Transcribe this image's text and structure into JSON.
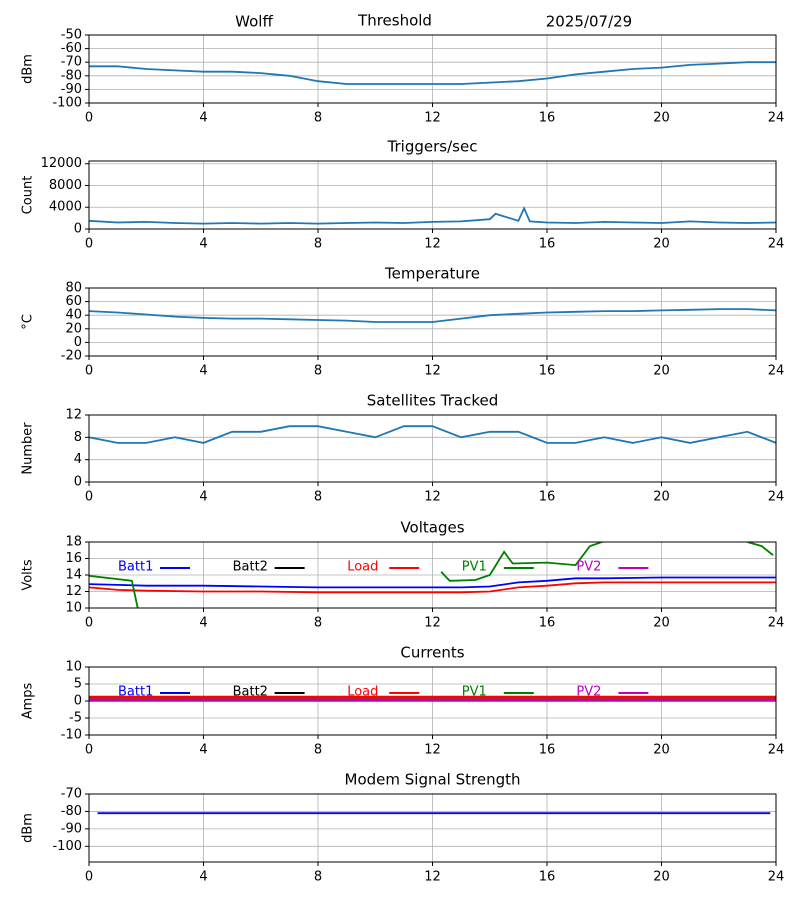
{
  "header": {
    "station": "Wolff",
    "date": "2025/07/29"
  },
  "chart_data": [
    {
      "type": "line",
      "title": "Threshold",
      "ylabel": "dBm",
      "xlim": [
        0,
        24
      ],
      "xticks": [
        0,
        4,
        8,
        12,
        16,
        20,
        24
      ],
      "ylim": [
        -100,
        -50
      ],
      "yticks": [
        -100,
        -90,
        -80,
        -70,
        -60,
        -50
      ],
      "grid": true,
      "x": [
        0,
        1,
        2,
        3,
        4,
        5,
        6,
        7,
        8,
        9,
        10,
        11,
        12,
        13,
        14,
        15,
        16,
        17,
        18,
        19,
        20,
        21,
        22,
        23,
        24
      ],
      "series": [
        {
          "name": "Threshold",
          "color": "#1f77b4",
          "values": [
            -73,
            -73,
            -75,
            -76,
            -77,
            -77,
            -78,
            -80,
            -84,
            -86,
            -86,
            -86,
            -86,
            -86,
            -85,
            -84,
            -82,
            -79,
            -77,
            -75,
            -74,
            -72,
            -71,
            -70,
            -70
          ]
        }
      ]
    },
    {
      "type": "line",
      "title": "Triggers/sec",
      "ylabel": "Count",
      "xlim": [
        0,
        24
      ],
      "xticks": [
        0,
        4,
        8,
        12,
        16,
        20,
        24
      ],
      "ylim": [
        0,
        12500
      ],
      "yticks": [
        0,
        4000,
        8000,
        12000
      ],
      "grid": true,
      "x": [
        0,
        1,
        2,
        3,
        4,
        5,
        6,
        7,
        8,
        9,
        10,
        11,
        12,
        13,
        14,
        14.2,
        15,
        15.2,
        15.4,
        16,
        17,
        18,
        19,
        20,
        21,
        22,
        23,
        24
      ],
      "series": [
        {
          "name": "Triggers",
          "color": "#1f77b4",
          "values": [
            1500,
            1200,
            1300,
            1100,
            1000,
            1100,
            1000,
            1100,
            1000,
            1100,
            1200,
            1100,
            1300,
            1400,
            1800,
            2800,
            1500,
            3800,
            1400,
            1200,
            1100,
            1300,
            1200,
            1100,
            1400,
            1200,
            1100,
            1200
          ]
        }
      ]
    },
    {
      "type": "line",
      "title": "Temperature",
      "ylabel": "°C",
      "xlim": [
        0,
        24
      ],
      "xticks": [
        0,
        4,
        8,
        12,
        16,
        20,
        24
      ],
      "ylim": [
        -20,
        80
      ],
      "yticks": [
        -20,
        0,
        20,
        40,
        60,
        80
      ],
      "grid": true,
      "x": [
        0,
        1,
        2,
        3,
        4,
        5,
        6,
        7,
        8,
        9,
        10,
        11,
        12,
        13,
        14,
        15,
        16,
        17,
        18,
        19,
        20,
        21,
        22,
        23,
        24
      ],
      "series": [
        {
          "name": "Temperature",
          "color": "#1f77b4",
          "values": [
            46,
            44,
            41,
            38,
            36,
            35,
            35,
            34,
            33,
            32,
            30,
            30,
            30,
            35,
            40,
            42,
            44,
            45,
            46,
            46,
            47,
            48,
            49,
            49,
            47
          ]
        }
      ]
    },
    {
      "type": "line",
      "title": "Satellites Tracked",
      "ylabel": "Number",
      "xlim": [
        0,
        24
      ],
      "xticks": [
        0,
        4,
        8,
        12,
        16,
        20,
        24
      ],
      "ylim": [
        0,
        12
      ],
      "yticks": [
        0,
        4,
        8,
        12
      ],
      "grid": true,
      "x": [
        0,
        1,
        2,
        3,
        4,
        5,
        6,
        7,
        8,
        9,
        10,
        11,
        12,
        13,
        14,
        15,
        16,
        17,
        18,
        19,
        20,
        21,
        22,
        23,
        24
      ],
      "series": [
        {
          "name": "Satellites",
          "color": "#1f77b4",
          "values": [
            8,
            7,
            7,
            8,
            7,
            9,
            9,
            10,
            10,
            9,
            8,
            10,
            10,
            8,
            9,
            9,
            7,
            7,
            8,
            7,
            8,
            7,
            8,
            9,
            7
          ]
        }
      ]
    },
    {
      "type": "line",
      "title": "Voltages",
      "ylabel": "Volts",
      "xlim": [
        0,
        24
      ],
      "xticks": [
        0,
        4,
        8,
        12,
        16,
        20,
        24
      ],
      "ylim": [
        10,
        18
      ],
      "yticks": [
        10,
        12,
        14,
        16,
        18
      ],
      "grid": true,
      "legend": "top",
      "x": [
        0,
        1,
        2,
        4,
        6,
        8,
        10,
        12,
        13,
        14,
        15,
        16,
        17,
        18,
        20,
        22,
        24
      ],
      "series": [
        {
          "name": "Batt1",
          "color": "#0000ff",
          "values": [
            12.9,
            12.8,
            12.7,
            12.7,
            12.6,
            12.5,
            12.5,
            12.5,
            12.5,
            12.6,
            13.1,
            13.3,
            13.6,
            13.6,
            13.7,
            13.7,
            13.7
          ]
        },
        {
          "name": "Batt2",
          "color": "#000000",
          "values": [
            null,
            null,
            null,
            null,
            null,
            null,
            null,
            null,
            null,
            null,
            null,
            null,
            null,
            null,
            null,
            null,
            null
          ]
        },
        {
          "name": "Load",
          "color": "#ff0000",
          "values": [
            12.5,
            12.2,
            12.1,
            12.0,
            12.0,
            11.9,
            11.9,
            11.9,
            11.9,
            12.0,
            12.5,
            12.7,
            13.0,
            13.1,
            13.1,
            13.1,
            13.1
          ]
        },
        {
          "name": "PV1",
          "color": "#008000",
          "x": [
            0,
            1,
            1.5,
            1.7,
            12,
            12.3,
            12.6,
            13.5,
            14,
            14.5,
            14.8,
            16,
            17,
            17.5,
            18,
            18.5,
            23,
            23.5,
            23.9
          ],
          "values": [
            13.9,
            13.5,
            13.3,
            10,
            null,
            14.4,
            13.3,
            13.4,
            14,
            16.8,
            15.4,
            15.5,
            15.2,
            17.5,
            18.1,
            null,
            18,
            17.5,
            16.4
          ]
        },
        {
          "name": "PV2",
          "color": "#bf00bf",
          "values": [
            null,
            null,
            null,
            null,
            null,
            null,
            null,
            null,
            null,
            null,
            null,
            null,
            null,
            null,
            null,
            null,
            null
          ]
        }
      ]
    },
    {
      "type": "line",
      "title": "Currents",
      "ylabel": "Amps",
      "xlim": [
        0,
        24
      ],
      "xticks": [
        0,
        4,
        8,
        12,
        16,
        20,
        24
      ],
      "ylim": [
        -10,
        10
      ],
      "yticks": [
        -10,
        -5,
        0,
        5,
        10
      ],
      "grid": true,
      "legend": "top",
      "x": [
        0,
        24
      ],
      "series": [
        {
          "name": "Batt1",
          "color": "#0000ff",
          "values": [
            0.6,
            0.6
          ]
        },
        {
          "name": "Batt2",
          "color": "#000000",
          "values": [
            0.8,
            0.8
          ]
        },
        {
          "name": "Load",
          "color": "#ff0000",
          "values": [
            1.1,
            1.1
          ]
        },
        {
          "name": "PV1",
          "color": "#008000",
          "values": [
            0.3,
            0.3
          ]
        },
        {
          "name": "PV2",
          "color": "#bf00bf",
          "values": [
            0.2,
            0.2
          ]
        }
      ]
    },
    {
      "type": "line",
      "title": "Modem Signal Strength",
      "ylabel": "dBm",
      "xlim": [
        0,
        24
      ],
      "xticks": [
        0,
        4,
        8,
        12,
        16,
        20,
        24
      ],
      "ylim": [
        -109,
        -70
      ],
      "yticks": [
        -100,
        -90,
        -80,
        -70
      ],
      "grid": true,
      "x": [
        0.3,
        12,
        23.8
      ],
      "series": [
        {
          "name": "Modem",
          "color": "#0000ff",
          "values": [
            -81,
            -81,
            -81
          ]
        }
      ]
    }
  ]
}
